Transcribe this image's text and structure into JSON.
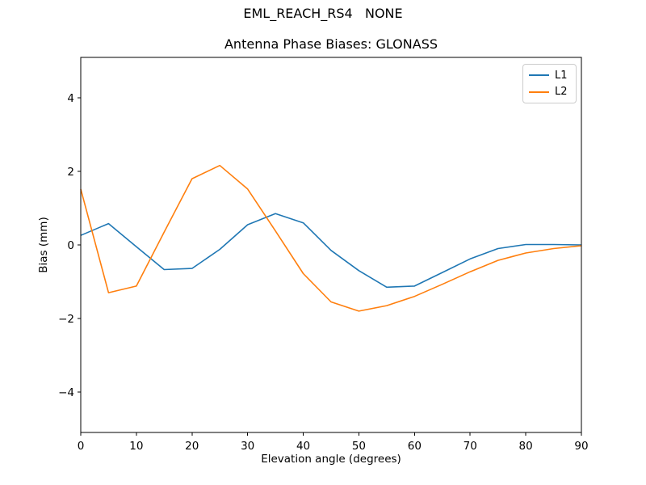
{
  "chart_data": {
    "type": "line",
    "suptitle": "EML_REACH_RS4   NONE",
    "title": "Antenna Phase Biases: GLONASS",
    "xlabel": "Elevation angle (degrees)",
    "ylabel": "Bias (mm)",
    "x": [
      0,
      5,
      10,
      15,
      20,
      25,
      30,
      35,
      40,
      45,
      50,
      55,
      60,
      65,
      70,
      75,
      80,
      85,
      90
    ],
    "series": [
      {
        "name": "L1",
        "color": "#1f77b4",
        "values": [
          0.26,
          0.58,
          -0.05,
          -0.67,
          -0.64,
          -0.12,
          0.55,
          0.85,
          0.6,
          -0.15,
          -0.7,
          -1.15,
          -1.12,
          -0.75,
          -0.38,
          -0.1,
          0.01,
          0.01,
          0.0
        ]
      },
      {
        "name": "L2",
        "color": "#ff7f0e",
        "values": [
          1.52,
          -1.3,
          -1.12,
          0.35,
          1.8,
          2.16,
          1.52,
          0.38,
          -0.78,
          -1.55,
          -1.8,
          -1.65,
          -1.4,
          -1.07,
          -0.73,
          -0.42,
          -0.22,
          -0.1,
          -0.02
        ]
      }
    ],
    "xlim": [
      0,
      90
    ],
    "ylim": [
      -5.1,
      5.1
    ],
    "xticks": [
      0,
      10,
      20,
      30,
      40,
      50,
      60,
      70,
      80,
      90
    ],
    "xtick_labels": [
      "0",
      "10",
      "20",
      "30",
      "40",
      "50",
      "60",
      "70",
      "80",
      "90"
    ],
    "ytick_values": [
      -4,
      -2,
      0,
      2,
      4
    ],
    "ytick_labels": [
      "−4",
      "−2",
      "0",
      "2",
      "4"
    ],
    "legend_position": "upper right",
    "grid": false,
    "colors": {
      "axis": "#000000",
      "legend_border": "#cccccc",
      "background": "#ffffff"
    }
  }
}
